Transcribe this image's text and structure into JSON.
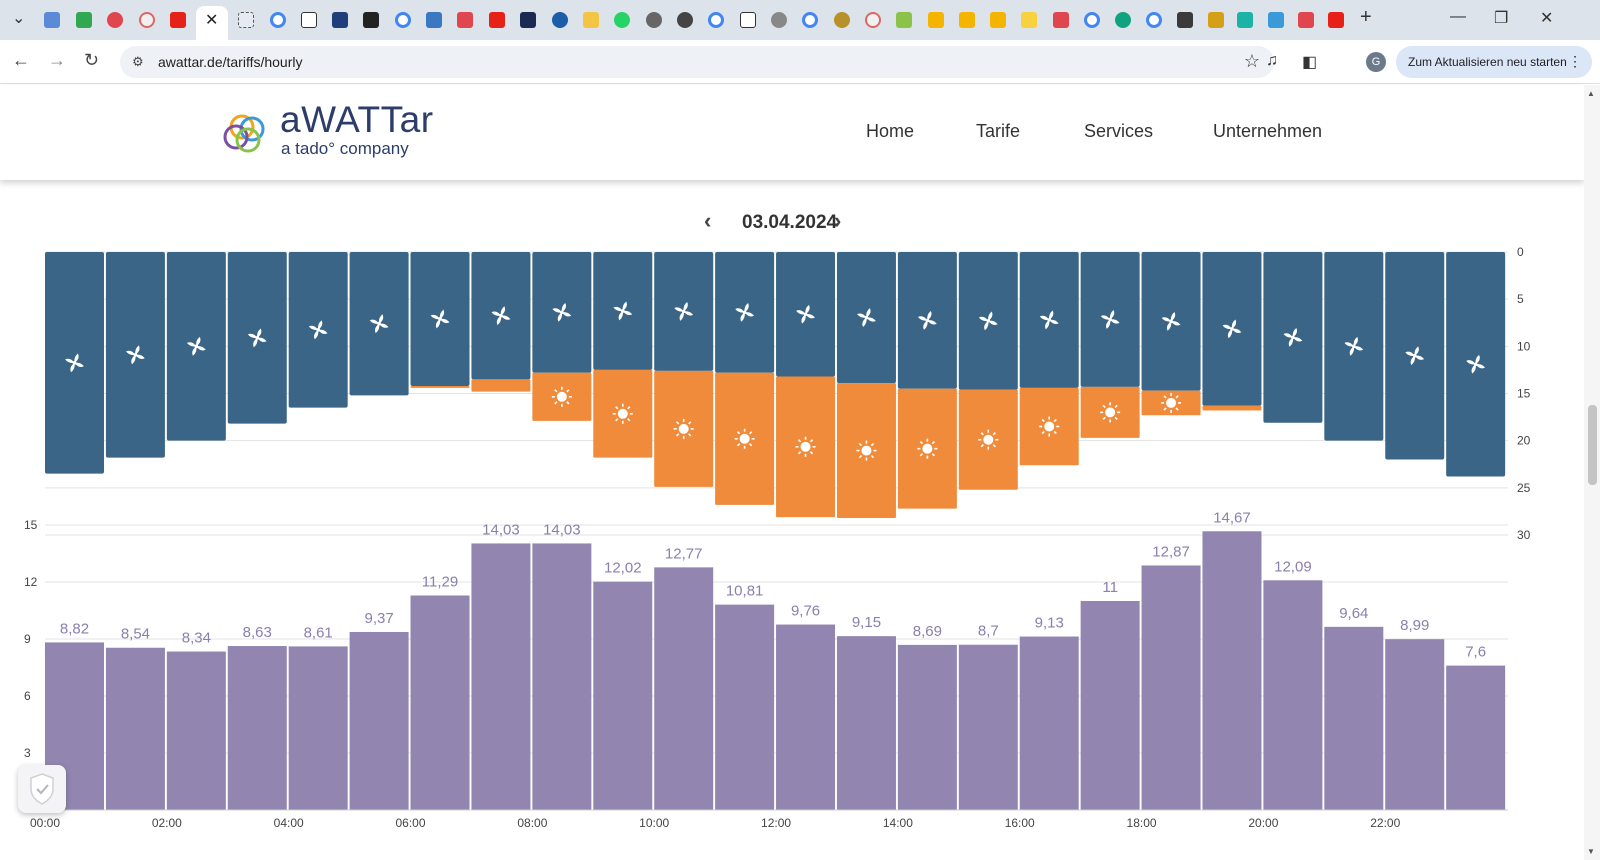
{
  "browser": {
    "active_tab_close": "✕",
    "new_tab": "+",
    "url": "awattar.de/tariffs/hourly",
    "restart_button": "Zum Aktualisieren neu starten",
    "profile_initial": "G"
  },
  "header": {
    "logo_name": "aWATTar",
    "logo_sub": "a tado° company",
    "menu": [
      "Home",
      "Tarife",
      "Services",
      "Unternehmen"
    ]
  },
  "date_nav": {
    "date": "03.04.2024",
    "prev": "‹",
    "next": "›"
  },
  "colors": {
    "wind": "#3a6586",
    "solar": "#ef8b3a",
    "price": "#9286b0",
    "price_label": "#8b7fae"
  },
  "icons": {
    "wind": "wind-turbine-icon",
    "solar": "sun-icon",
    "cookie": "shield-check-icon"
  },
  "chart_data": [
    {
      "type": "bar",
      "stacking": "stacked",
      "orientation": "hanging-from-top",
      "y_axis_position": "right",
      "ylim": [
        0,
        30
      ],
      "y_ticks": [
        0,
        5,
        10,
        15,
        20,
        25,
        30
      ],
      "categories": [
        "00:00",
        "01:00",
        "02:00",
        "03:00",
        "04:00",
        "05:00",
        "06:00",
        "07:00",
        "08:00",
        "09:00",
        "10:00",
        "11:00",
        "12:00",
        "13:00",
        "14:00",
        "15:00",
        "16:00",
        "17:00",
        "18:00",
        "19:00",
        "20:00",
        "21:00",
        "22:00",
        "23:00"
      ],
      "series": [
        {
          "icon": "wind",
          "values": [
            23.5,
            21.8,
            20.0,
            18.2,
            16.5,
            15.2,
            14.2,
            13.5,
            12.8,
            12.5,
            12.6,
            12.8,
            13.2,
            13.9,
            14.5,
            14.6,
            14.4,
            14.3,
            14.7,
            16.3,
            18.1,
            20.0,
            22.0,
            23.8
          ]
        },
        {
          "icon": "solar",
          "values": [
            0,
            0,
            0,
            0,
            0,
            0,
            0.2,
            1.3,
            5.1,
            9.3,
            12.3,
            14.0,
            14.9,
            14.3,
            12.7,
            10.6,
            8.2,
            5.4,
            2.6,
            0.5,
            0,
            0,
            0,
            0
          ]
        }
      ]
    },
    {
      "type": "bar",
      "y_axis_position": "left",
      "ylim": [
        0,
        15
      ],
      "y_ticks": [
        3,
        6,
        9,
        12,
        15
      ],
      "categories": [
        "00:00",
        "01:00",
        "02:00",
        "03:00",
        "04:00",
        "05:00",
        "06:00",
        "07:00",
        "08:00",
        "09:00",
        "10:00",
        "11:00",
        "12:00",
        "13:00",
        "14:00",
        "15:00",
        "16:00",
        "17:00",
        "18:00",
        "19:00",
        "20:00",
        "21:00",
        "22:00",
        "23:00"
      ],
      "x_tick_labels": [
        "00:00",
        "02:00",
        "04:00",
        "06:00",
        "08:00",
        "10:00",
        "12:00",
        "14:00",
        "16:00",
        "18:00",
        "20:00",
        "22:00"
      ],
      "values": [
        8.82,
        8.54,
        8.34,
        8.63,
        8.61,
        9.37,
        11.29,
        14.03,
        14.03,
        12.02,
        12.77,
        10.81,
        9.76,
        9.15,
        8.69,
        8.7,
        9.13,
        11,
        12.87,
        14.67,
        12.09,
        9.64,
        8.99,
        7.6
      ],
      "labels": [
        "8,82",
        "8,54",
        "8,34",
        "8,63",
        "8,61",
        "9,37",
        "11,29",
        "14,03",
        "14,03",
        "12,02",
        "12,77",
        "10,81",
        "9,76",
        "9,15",
        "8,69",
        "8,7",
        "9,13",
        "11",
        "12,87",
        "14,67",
        "12,09",
        "9,64",
        "8,99",
        "7,6"
      ]
    }
  ]
}
